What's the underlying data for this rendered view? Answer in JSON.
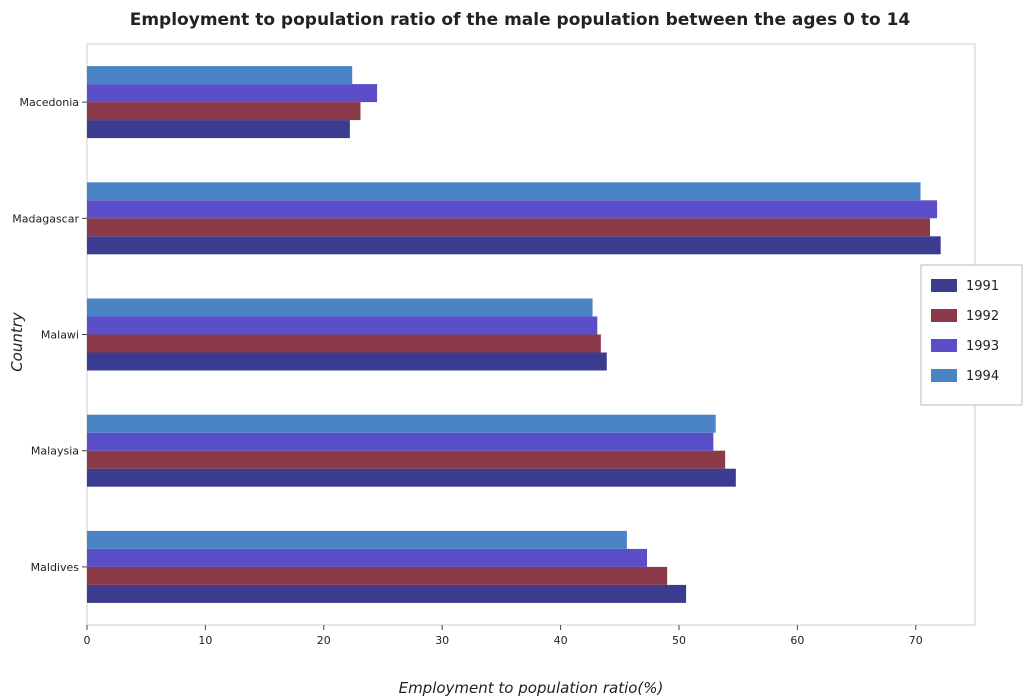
{
  "chart_data": {
    "type": "bar",
    "orientation": "horizontal",
    "title": "Employment to population ratio of the male population between the ages 0 to 14",
    "xlabel": "Employment to population ratio(%)",
    "ylabel": "Country",
    "xlim": [
      0,
      75
    ],
    "xticks": [
      0,
      10,
      20,
      30,
      40,
      50,
      60,
      70
    ],
    "grid": false,
    "legend_position": "right",
    "categories": [
      "Macedonia",
      "Madagascar",
      "Malawi",
      "Malaysia",
      "Maldives"
    ],
    "series": [
      {
        "name": "1991",
        "color": "#3b3b8f",
        "values": [
          22.2,
          72.1,
          43.9,
          54.8,
          50.6
        ]
      },
      {
        "name": "1992",
        "color": "#8b3a4a",
        "values": [
          23.1,
          71.2,
          43.4,
          53.9,
          49.0
        ]
      },
      {
        "name": "1993",
        "color": "#5a4ec9",
        "values": [
          24.5,
          71.8,
          43.1,
          52.9,
          47.3
        ]
      },
      {
        "name": "1994",
        "color": "#4a84c4",
        "values": [
          22.4,
          70.4,
          42.7,
          53.1,
          45.6
        ]
      }
    ]
  }
}
